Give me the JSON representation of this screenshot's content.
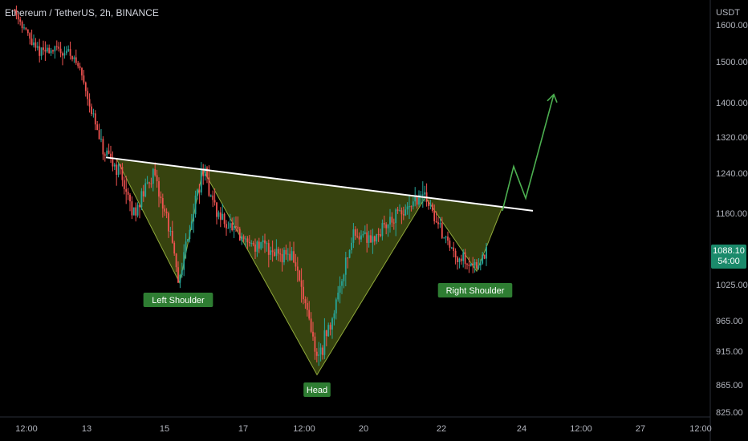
{
  "header": {
    "symbol_title": "Ethereum / TetherUS, 2h, BINANCE"
  },
  "price_tag": {
    "price": "1088.10",
    "countdown": "54:00",
    "color": "#1b8a6b"
  },
  "colors": {
    "up": "#26a69a",
    "down": "#ef5350",
    "pattern_fill": "#4a5a14",
    "pattern_line": "#8fa83a",
    "neckline": "#ffffff",
    "arrow": "#4caf50",
    "label_bg": "#2e7d32",
    "axis_text": "#b2b5be"
  },
  "chart_data": {
    "type": "candlestick",
    "title": "Ethereum / TetherUS, 2h, BINANCE",
    "currency": "USDT",
    "y_ticks": [
      1600,
      1500,
      1400,
      1320,
      1240,
      1160,
      1088.1,
      1025,
      965,
      915,
      865,
      825
    ],
    "y_tick_labels": [
      "1600.00",
      "1500.00",
      "1400.00",
      "1320.00",
      "1240.00",
      "1160.00",
      "1088.10",
      "1025.00",
      "965.00",
      "915.00",
      "865.00",
      "825.00"
    ],
    "x_ticks": [
      "12:00",
      "13",
      "15",
      "17",
      "12:00",
      "20",
      "22",
      "24",
      "12:00",
      "27",
      "12:00"
    ],
    "last_price": 1088.1,
    "pattern": "inverse head and shoulders",
    "annotations": [
      {
        "label": "Left Shoulder",
        "price": 1025
      },
      {
        "label": "Head",
        "price": 880
      },
      {
        "label": "Right Shoulder",
        "price": 1050
      }
    ],
    "neckline": {
      "start_price": 1275,
      "end_price": 1165
    },
    "projection_prices": [
      1165,
      1255,
      1190,
      1420
    ]
  }
}
